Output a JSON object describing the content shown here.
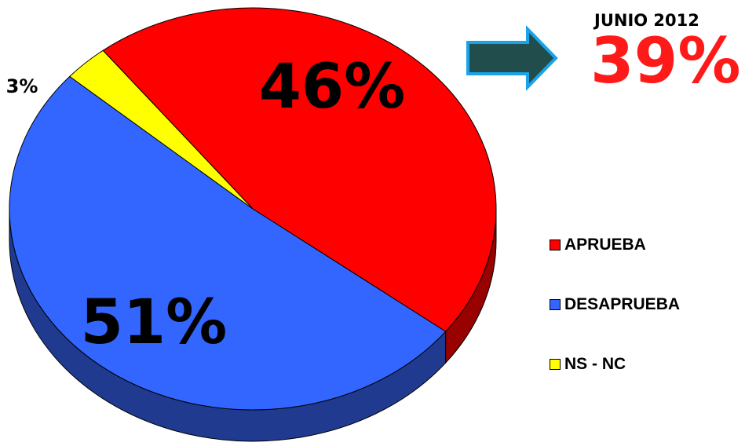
{
  "chart_data": {
    "type": "pie",
    "categories": [
      "APRUEBA",
      "DESAPRUEBA",
      "NS - NC"
    ],
    "values": [
      46,
      51,
      3
    ],
    "data_labels": [
      "46%",
      "51%",
      "3%"
    ],
    "colors": [
      "#ff0000",
      "#3366ff",
      "#ffff00"
    ],
    "side_colors": [
      "#990000",
      "#1f3a8f",
      "#8f8f00"
    ],
    "legend_position": "right",
    "three_d": true
  },
  "annotation": {
    "title": "JUNIO 2012",
    "value": "39%",
    "value_color": "#ff1a1a",
    "arrow_fill": "#224d4d",
    "arrow_border": "#1aa3e8"
  },
  "legend": {
    "items": [
      {
        "label": "APRUEBA",
        "color": "#ff0000"
      },
      {
        "label": "DESAPRUEBA",
        "color": "#3366ff"
      },
      {
        "label": "NS - NC",
        "color": "#ffff00"
      }
    ]
  }
}
